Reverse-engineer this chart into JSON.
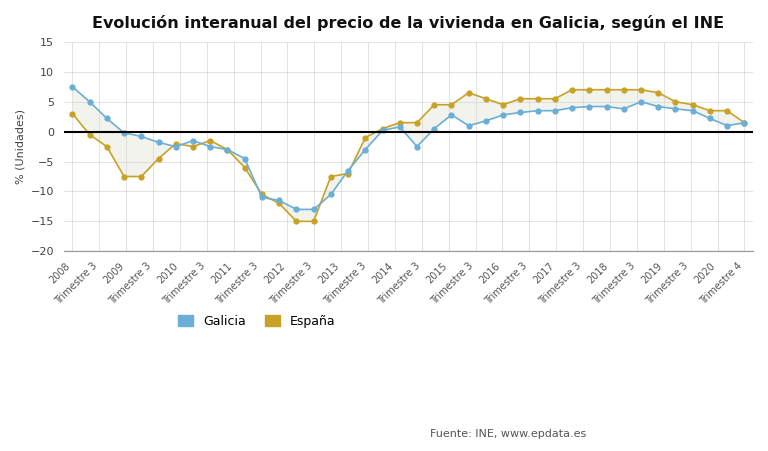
{
  "title": "Evolución interanual del precio de la vivienda en Galicia, según el INE",
  "ylabel": "% (Unidades)",
  "ylim": [
    -20,
    15
  ],
  "yticks": [
    -20,
    -15,
    -10,
    -5,
    0,
    5,
    10,
    15
  ],
  "background_color": "#ffffff",
  "galicia_color": "#6baed6",
  "espana_color": "#c8a227",
  "shade_color": "#d8d8c8",
  "source_text": "Fuente: INE, www.epdata.es",
  "legend_galicia": "Galicia",
  "legend_espana": "España",
  "x_labels": [
    "2008",
    "Trimestre 3",
    "2009",
    "Trimestre 3",
    "2010",
    "Trimestre 3",
    "2011",
    "Trimestre 3",
    "2012",
    "Trimestre 3",
    "2013",
    "Trimestre 3",
    "2014",
    "Trimestre 3",
    "2015",
    "Trimestre 3",
    "2016",
    "Trimestre 3",
    "2017",
    "Trimestre 3",
    "2018",
    "Trimestre 3",
    "2019",
    "Trimestre 3",
    "2020",
    "Trimestre 4"
  ],
  "galicia": [
    7.5,
    5.0,
    2.2,
    -0.2,
    -0.8,
    -1.8,
    -2.5,
    -1.5,
    -2.5,
    -3.0,
    -4.5,
    -11.0,
    -11.5,
    -13.0,
    -13.0,
    -10.5,
    -6.5,
    -3.0,
    0.2,
    0.8,
    -2.5,
    0.5,
    2.8,
    1.0,
    1.8,
    2.8,
    3.2,
    3.5,
    3.5,
    4.0,
    4.2,
    4.2,
    3.8,
    5.0,
    4.2,
    3.8,
    3.5,
    2.2,
    1.0,
    1.5
  ],
  "espana": [
    3.0,
    -0.5,
    -2.5,
    -7.5,
    -7.5,
    -4.5,
    -2.0,
    -2.5,
    -1.5,
    -3.0,
    -6.0,
    -10.5,
    -12.0,
    -15.0,
    -15.0,
    -7.5,
    -7.0,
    -1.0,
    0.5,
    1.5,
    1.5,
    4.5,
    4.5,
    6.5,
    5.5,
    4.5,
    5.5,
    5.5,
    5.5,
    7.0,
    7.0,
    7.0,
    7.0,
    7.0,
    6.5,
    5.0,
    4.5,
    3.5,
    3.5,
    1.5
  ]
}
